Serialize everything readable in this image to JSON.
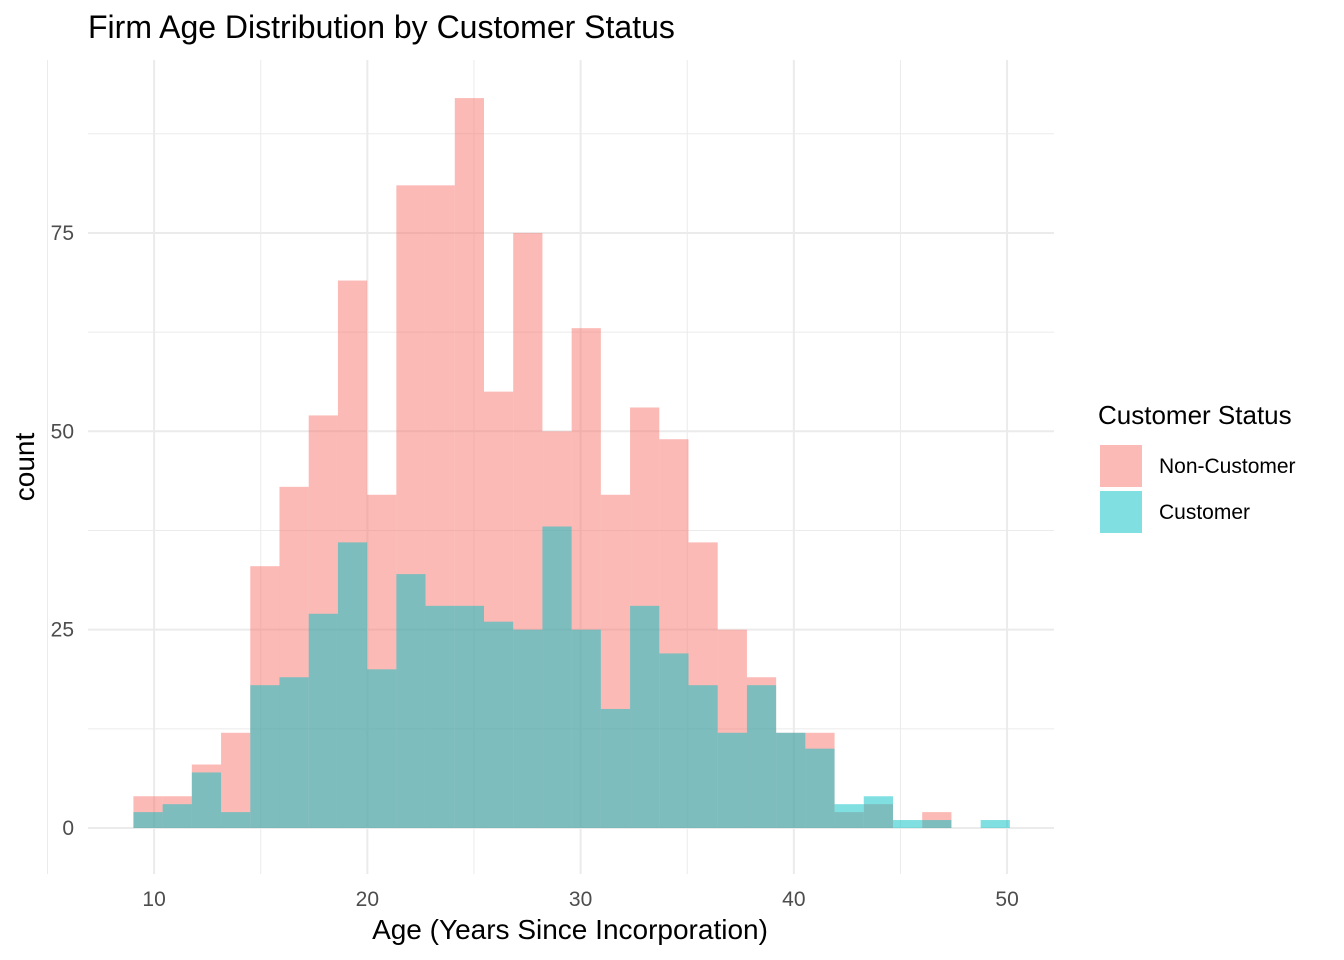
{
  "chart_data": {
    "type": "histogram",
    "title": "Firm Age Distribution by Customer Status",
    "xlabel": "Age (Years Since Incorporation)",
    "ylabel": "count",
    "xlim": [
      6.9,
      52.2
    ],
    "ylim": [
      -5.8,
      96.8
    ],
    "x_ticks": [
      10,
      20,
      30,
      40,
      50
    ],
    "y_ticks": [
      0,
      25,
      50,
      75
    ],
    "bin_start": 9.03,
    "bin_width": 1.37,
    "grid": true,
    "legend_position": "right",
    "legend": {
      "title": "Customer Status",
      "entries": [
        {
          "label": "Non-Customer",
          "color": "#F8766D"
        },
        {
          "label": "Customer",
          "color": "#00BFC4"
        }
      ]
    },
    "series": [
      {
        "name": "Non-Customer",
        "color": "#F8766D",
        "counts": [
          4,
          4,
          8,
          12,
          33,
          43,
          52,
          69,
          42,
          81,
          81,
          92,
          55,
          75,
          50,
          63,
          42,
          53,
          49,
          36,
          25,
          19,
          12,
          12,
          2,
          3,
          0,
          2,
          0,
          0
        ]
      },
      {
        "name": "Customer",
        "color": "#00BFC4",
        "counts": [
          2,
          3,
          7,
          2,
          18,
          19,
          27,
          36,
          20,
          32,
          28,
          28,
          26,
          25,
          38,
          25,
          15,
          28,
          22,
          18,
          12,
          18,
          12,
          10,
          3,
          4,
          1,
          1,
          0,
          1
        ]
      }
    ]
  }
}
